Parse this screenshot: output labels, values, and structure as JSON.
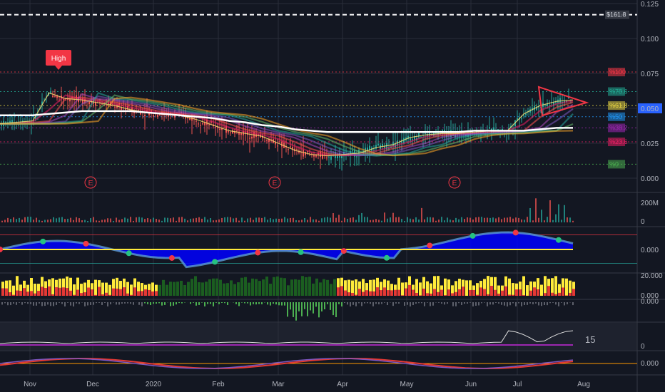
{
  "colors": {
    "background": "#131722",
    "grid": "#2a2e39",
    "price_up": "#26a69a",
    "price_down": "#ef5350",
    "sma": "#ffffff",
    "accent_blue": "#2962ff"
  },
  "price_axis": {
    "labels": [
      "0.125",
      "0.100",
      "0.075",
      "0.050",
      "0.025",
      "0.000"
    ],
    "current": "0.050",
    "ylim": [
      0,
      0.125
    ]
  },
  "time_axis": {
    "labels": [
      "Nov",
      "Dec",
      "2020",
      "Feb",
      "Mar",
      "Apr",
      "May",
      "Jun",
      "Jul",
      "Aug"
    ]
  },
  "annotations": {
    "high_label": "High",
    "earnings_marker": "E"
  },
  "fib_levels": [
    {
      "label": "$161.8",
      "value": 0.117,
      "color": "#ffffff"
    },
    {
      "label": "%100",
      "value": 0.076,
      "color": "#f23645"
    },
    {
      "label": "%78.6",
      "value": 0.062,
      "color": "#22ab94"
    },
    {
      "label": "%61.8",
      "value": 0.052,
      "color": "#e8d543"
    },
    {
      "label": "%50",
      "value": 0.044,
      "color": "#2196f3"
    },
    {
      "label": "%38.2",
      "value": 0.036,
      "color": "#9c27b0"
    },
    {
      "label": "%23.6",
      "value": 0.026,
      "color": "#e91e63"
    },
    {
      "label": "%0",
      "value": 0.01,
      "color": "#4caf50"
    }
  ],
  "panes": {
    "volume": {
      "labels": [
        "200M",
        "0"
      ]
    },
    "oscillator": {
      "labels": [
        "0.000"
      ]
    },
    "histogram": {
      "labels": [
        "20.000",
        "0.000"
      ]
    },
    "histogram2": {
      "labels": [
        "0.000"
      ]
    },
    "adx": {
      "labels": [
        "0"
      ],
      "value_label": "15"
    },
    "macd": {
      "labels": [
        "0.000"
      ]
    }
  },
  "chart_data": {
    "type": "line",
    "title": "",
    "xlabel": "",
    "ylabel": "",
    "x": [
      "Nov",
      "Nov",
      "Nov",
      "Nov",
      "Dec",
      "Dec",
      "Dec",
      "Dec",
      "2020",
      "2020",
      "2020",
      "2020",
      "Feb",
      "Feb",
      "Feb",
      "Feb",
      "Mar",
      "Mar",
      "Mar",
      "Mar",
      "Apr",
      "Apr",
      "Apr",
      "Apr",
      "May",
      "May",
      "May",
      "May",
      "Jun",
      "Jun",
      "Jun",
      "Jun",
      "Jul",
      "Jul",
      "Jul",
      "Jul"
    ],
    "series": [
      {
        "values": [
          0.039,
          0.04,
          0.041,
          0.061,
          0.057,
          0.056,
          0.054,
          0.052,
          0.049,
          0.047,
          0.046,
          0.045,
          0.042,
          0.038,
          0.034,
          0.032,
          0.03,
          0.025,
          0.02,
          0.017,
          0.016,
          0.017,
          0.018,
          0.022,
          0.024,
          0.029,
          0.031,
          0.032,
          0.032,
          0.033,
          0.034,
          0.034,
          0.046,
          0.052,
          0.055,
          0.056
        ]
      },
      {
        "values": [
          0.045,
          0.045,
          0.045,
          0.046,
          0.047,
          0.048,
          0.048,
          0.048,
          0.048,
          0.047,
          0.046,
          0.045,
          0.044,
          0.043,
          0.041,
          0.04,
          0.038,
          0.037,
          0.035,
          0.034,
          0.033,
          0.033,
          0.033,
          0.033,
          0.033,
          0.033,
          0.033,
          0.033,
          0.033,
          0.034,
          0.034,
          0.034,
          0.034,
          0.035,
          0.036,
          0.036
        ]
      }
    ],
    "ylim": [
      0,
      0.125
    ]
  }
}
